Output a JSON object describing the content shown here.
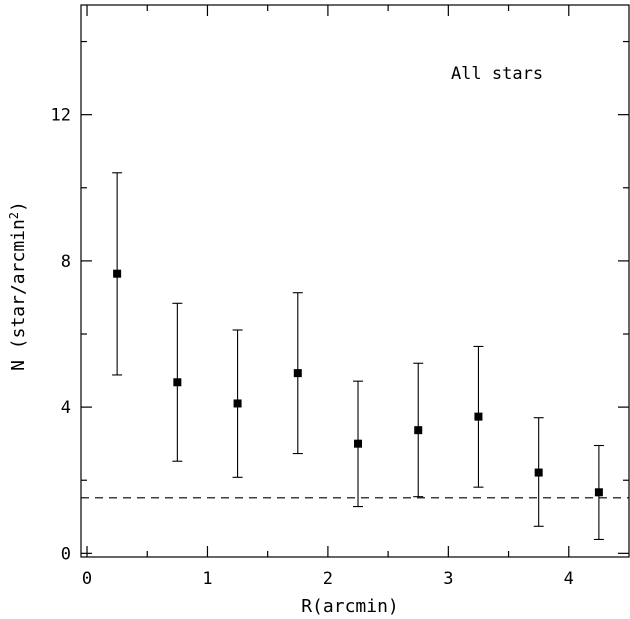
{
  "chart_data": {
    "type": "scatter",
    "title": "",
    "xlabel": "R(arcmin)",
    "ylabel_main": "N (star/arcmin",
    "ylabel_sup": "2",
    "ylabel_close": ")",
    "annotation": "All stars",
    "xlim": [
      -0.05,
      4.5
    ],
    "ylim": [
      -0.1,
      15
    ],
    "x_ticks": [
      0,
      1,
      2,
      3,
      4
    ],
    "x_tick_labels": [
      "0",
      "1",
      "2",
      "3",
      "4"
    ],
    "x_minor_step": 0.5,
    "y_ticks": [
      0,
      4,
      8,
      12
    ],
    "y_tick_labels": [
      "0",
      "4",
      "8",
      "12"
    ],
    "y_minor_step": 2,
    "grid": false,
    "background_level": 1.52,
    "series": [
      {
        "marker": "square",
        "color": "#000000",
        "x": [
          0.25,
          0.75,
          1.25,
          1.75,
          2.25,
          2.75,
          3.25,
          3.75,
          4.25
        ],
        "y": [
          7.65,
          4.68,
          4.1,
          4.93,
          3.0,
          3.37,
          3.74,
          2.21,
          1.67
        ],
        "err_low": [
          4.88,
          2.52,
          2.08,
          2.73,
          1.28,
          1.55,
          1.81,
          0.74,
          0.38
        ],
        "err_high": [
          10.41,
          6.84,
          6.11,
          7.13,
          4.71,
          5.2,
          5.66,
          3.71,
          2.95
        ]
      }
    ]
  }
}
